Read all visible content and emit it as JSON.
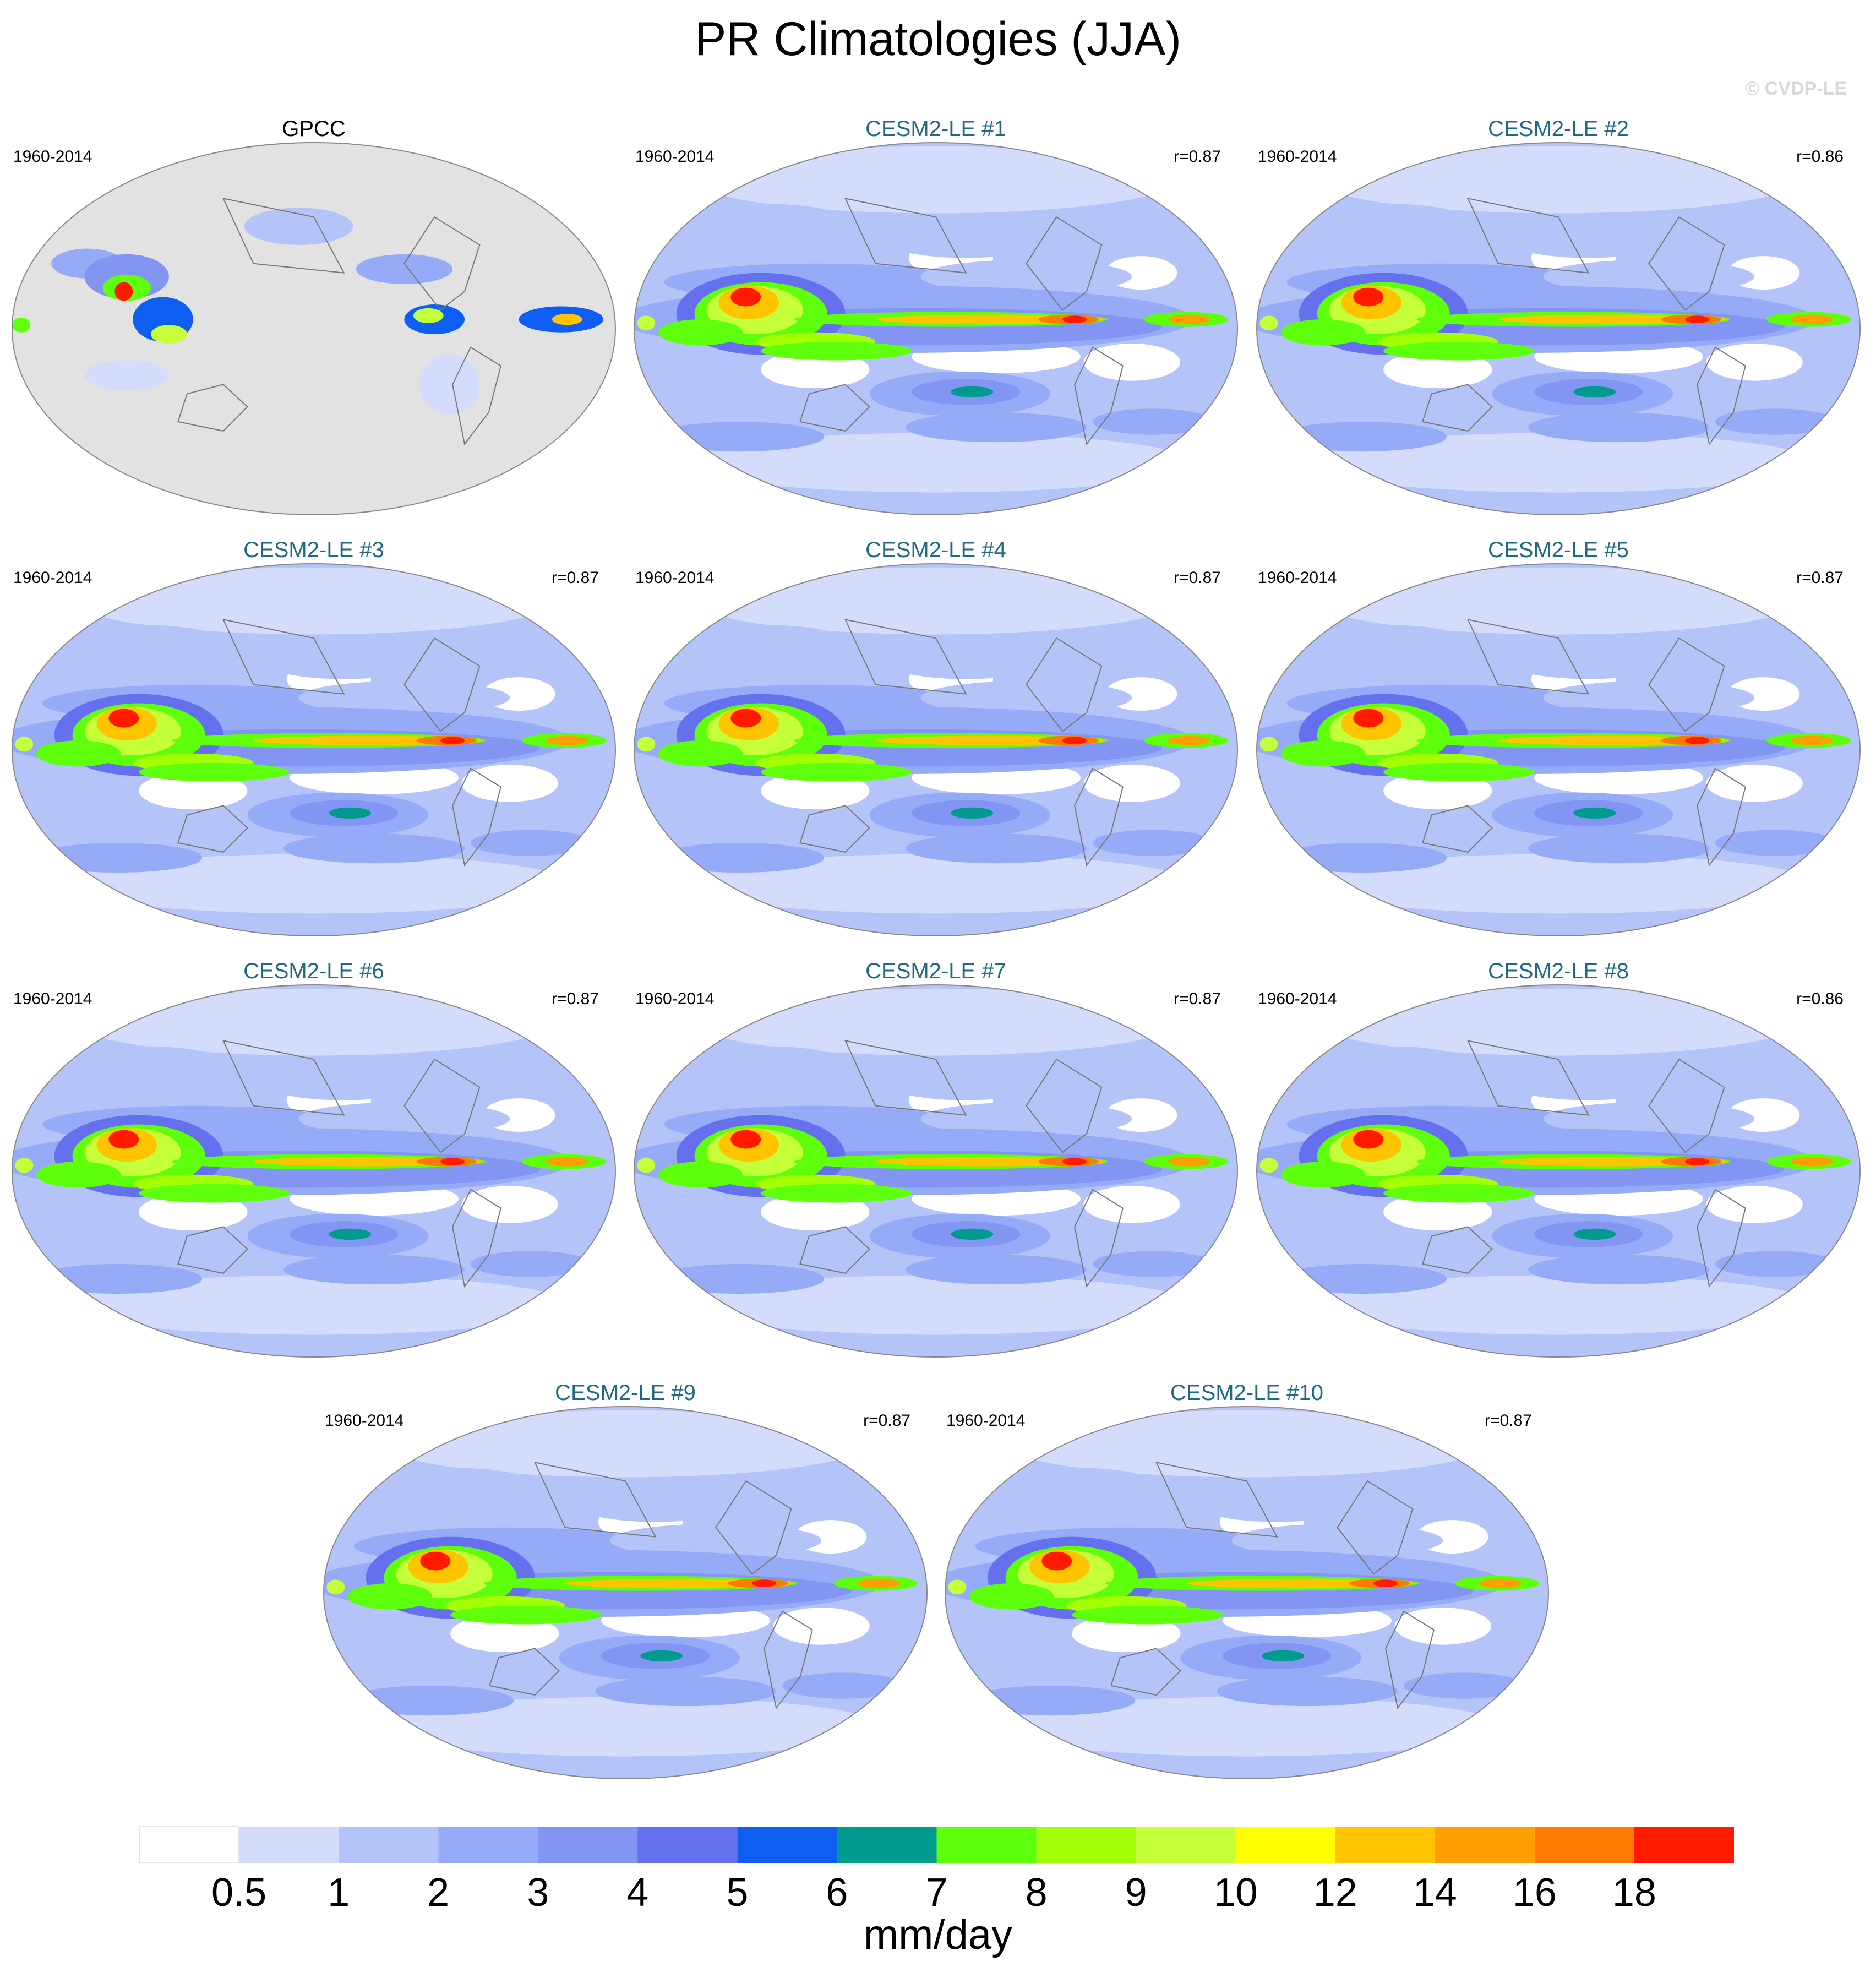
{
  "figure": {
    "title": "PR Climatologies (JJA)",
    "watermark": "© CVDP-LE"
  },
  "panels": [
    {
      "name": "GPCC",
      "period": "1960-2014",
      "corr": "",
      "kind": "obs"
    },
    {
      "name": "CESM2-LE #1",
      "period": "1960-2014",
      "corr": "r=0.87",
      "kind": "model"
    },
    {
      "name": "CESM2-LE #2",
      "period": "1960-2014",
      "corr": "r=0.86",
      "kind": "model"
    },
    {
      "name": "CESM2-LE #3",
      "period": "1960-2014",
      "corr": "r=0.87",
      "kind": "model"
    },
    {
      "name": "CESM2-LE #4",
      "period": "1960-2014",
      "corr": "r=0.87",
      "kind": "model"
    },
    {
      "name": "CESM2-LE #5",
      "period": "1960-2014",
      "corr": "r=0.87",
      "kind": "model"
    },
    {
      "name": "CESM2-LE #6",
      "period": "1960-2014",
      "corr": "r=0.87",
      "kind": "model"
    },
    {
      "name": "CESM2-LE #7",
      "period": "1960-2014",
      "corr": "r=0.87",
      "kind": "model"
    },
    {
      "name": "CESM2-LE #8",
      "period": "1960-2014",
      "corr": "r=0.86",
      "kind": "model"
    },
    {
      "name": "CESM2-LE #9",
      "period": "1960-2014",
      "corr": "r=0.87",
      "kind": "model"
    },
    {
      "name": "CESM2-LE #10",
      "period": "1960-2014",
      "corr": "r=0.87",
      "kind": "model"
    }
  ],
  "colorbar": {
    "label": "mm/day",
    "ticks": [
      "0.5",
      "1",
      "2",
      "3",
      "4",
      "5",
      "6",
      "7",
      "8",
      "9",
      "10",
      "12",
      "14",
      "16",
      "18"
    ],
    "colors": [
      "#ffffff",
      "#d3dcfa",
      "#b4c4f8",
      "#96abf7",
      "#8295f2",
      "#6470ee",
      "#0f5ef2",
      "#009a8e",
      "#5dff0a",
      "#a4ff05",
      "#c4ff3a",
      "#ffff00",
      "#ffc400",
      "#ff9e00",
      "#ff7a00",
      "#ff1a00"
    ]
  },
  "chart_data": {
    "type": "heatmap",
    "title": "PR Climatologies (JJA)",
    "variable": "PR",
    "season": "JJA",
    "units": "mm/day",
    "levels": [
      0.5,
      1,
      2,
      3,
      4,
      5,
      6,
      7,
      8,
      9,
      10,
      12,
      14,
      16,
      18
    ],
    "panels": [
      {
        "name": "GPCC",
        "period": "1960-2014"
      },
      {
        "name": "CESM2-LE #1",
        "period": "1960-2014",
        "r": 0.87
      },
      {
        "name": "CESM2-LE #2",
        "period": "1960-2014",
        "r": 0.86
      },
      {
        "name": "CESM2-LE #3",
        "period": "1960-2014",
        "r": 0.87
      },
      {
        "name": "CESM2-LE #4",
        "period": "1960-2014",
        "r": 0.87
      },
      {
        "name": "CESM2-LE #5",
        "period": "1960-2014",
        "r": 0.87
      },
      {
        "name": "CESM2-LE #6",
        "period": "1960-2014",
        "r": 0.87
      },
      {
        "name": "CESM2-LE #7",
        "period": "1960-2014",
        "r": 0.87
      },
      {
        "name": "CESM2-LE #8",
        "period": "1960-2014",
        "r": 0.86
      },
      {
        "name": "CESM2-LE #9",
        "period": "1960-2014",
        "r": 0.87
      },
      {
        "name": "CESM2-LE #10",
        "period": "1960-2014",
        "r": 0.87
      }
    ]
  }
}
